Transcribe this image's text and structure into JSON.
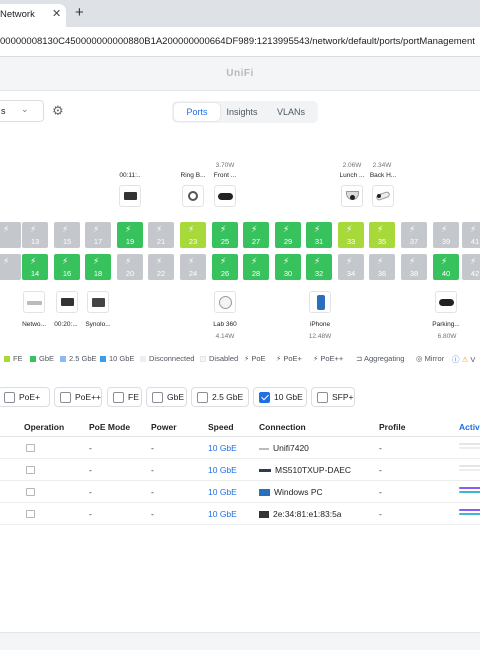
{
  "browser": {
    "tab_title": "Network",
    "tab_close": "✕",
    "new_tab": "+",
    "url": "00000008130C450000000000880B1A200000000664DF989:1213995543/network/default/ports/portManagement"
  },
  "app": {
    "brand": "UniFi"
  },
  "toolbar": {
    "select_value": "s",
    "select_chevron": "⌄",
    "gear": "⚙",
    "tabs": [
      "Ports",
      "Insights",
      "VLANs"
    ],
    "active_tab": "Ports"
  },
  "devices_top": [
    {
      "label": "00:11:..",
      "watt": ""
    },
    {
      "label": "Ring B...",
      "watt": ""
    },
    {
      "label": "Front ...",
      "watt": "3.70W"
    },
    {
      "label": "Lunch ...",
      "watt": "2.06W"
    },
    {
      "label": "Back H...",
      "watt": "2.34W"
    }
  ],
  "devices_bottom": [
    {
      "label": "Netwo...",
      "watt": ""
    },
    {
      "label": "00:20:...",
      "watt": ""
    },
    {
      "label": "Synolo...",
      "watt": ""
    },
    {
      "label": "Lab 360",
      "watt": "4.14W"
    },
    {
      "label": "iPhone",
      "watt": "12.48W"
    },
    {
      "label": "Parking...",
      "watt": "6.80W"
    }
  ],
  "ports_top": [
    {
      "num": "",
      "state": "gray"
    },
    {
      "num": "13",
      "state": "gray"
    },
    {
      "num": "15",
      "state": "gray"
    },
    {
      "num": "17",
      "state": "gray"
    },
    {
      "num": "19",
      "state": "green"
    },
    {
      "num": "21",
      "state": "gray"
    },
    {
      "num": "23",
      "state": "lime"
    },
    {
      "num": "25",
      "state": "green"
    },
    {
      "num": "27",
      "state": "green"
    },
    {
      "num": "29",
      "state": "green"
    },
    {
      "num": "31",
      "state": "green"
    },
    {
      "num": "33",
      "state": "lime"
    },
    {
      "num": "35",
      "state": "lime"
    },
    {
      "num": "37",
      "state": "gray"
    },
    {
      "num": "39",
      "state": "gray"
    },
    {
      "num": "41",
      "state": "gray"
    }
  ],
  "ports_bottom": [
    {
      "num": "",
      "state": "gray"
    },
    {
      "num": "14",
      "state": "green"
    },
    {
      "num": "16",
      "state": "green"
    },
    {
      "num": "18",
      "state": "green"
    },
    {
      "num": "20",
      "state": "gray"
    },
    {
      "num": "22",
      "state": "gray"
    },
    {
      "num": "24",
      "state": "gray"
    },
    {
      "num": "26",
      "state": "green"
    },
    {
      "num": "28",
      "state": "green"
    },
    {
      "num": "30",
      "state": "green"
    },
    {
      "num": "32",
      "state": "green"
    },
    {
      "num": "34",
      "state": "gray"
    },
    {
      "num": "36",
      "state": "gray"
    },
    {
      "num": "38",
      "state": "gray"
    },
    {
      "num": "40",
      "state": "green"
    },
    {
      "num": "42",
      "state": "gray"
    }
  ],
  "legend": {
    "fe": "FE",
    "gbe": "GbE",
    "gbe25": "2.5 GbE",
    "gbe10": "10 GbE",
    "disconnected": "Disconnected",
    "disabled": "Disabled",
    "poe": "PoE",
    "poep": "PoE+",
    "poepp": "PoE++",
    "aggregating": "Aggregating",
    "mirror": "Mirror",
    "warn": "V"
  },
  "filters": [
    {
      "label": "PoE+",
      "checked": false
    },
    {
      "label": "PoE++",
      "checked": false
    },
    {
      "label": "FE",
      "checked": false
    },
    {
      "label": "GbE",
      "checked": false
    },
    {
      "label": "2.5 GbE",
      "checked": false
    },
    {
      "label": "10 GbE",
      "checked": true
    },
    {
      "label": "SFP+",
      "checked": false
    }
  ],
  "table": {
    "headers": {
      "operation": "Operation",
      "poe_mode": "PoE Mode",
      "power": "Power",
      "speed": "Speed",
      "connection": "Connection",
      "profile": "Profile",
      "activity": "Activ"
    },
    "rows": [
      {
        "poe": "-",
        "power": "-",
        "speed": "10 GbE",
        "connection": "Unifi7420",
        "profile": "-"
      },
      {
        "poe": "-",
        "power": "-",
        "speed": "10 GbE",
        "connection": "MS510TXUP-DAEC",
        "profile": "-"
      },
      {
        "poe": "-",
        "power": "-",
        "speed": "10 GbE",
        "connection": "Windows PC",
        "profile": "-"
      },
      {
        "poe": "-",
        "power": "-",
        "speed": "10 GbE",
        "connection": "2e:34:81:e1:83:5a",
        "profile": "-"
      }
    ]
  },
  "colors": {
    "accent": "#1f6fe5",
    "port_green": "#38c25d",
    "port_lime": "#a8d93a",
    "port_gray": "#c4c7cc"
  }
}
